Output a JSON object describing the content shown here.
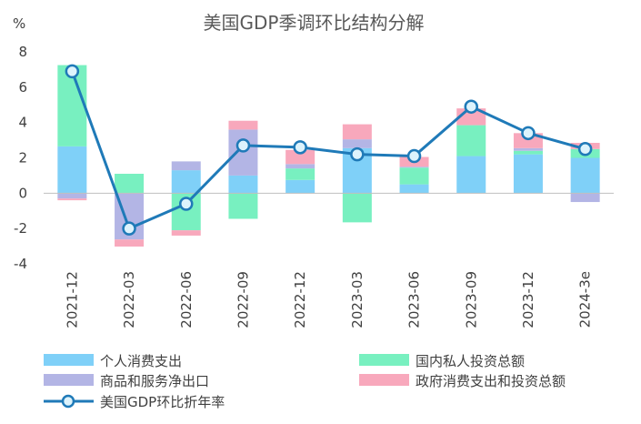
{
  "chart_data": {
    "type": "bar",
    "stacked": true,
    "title": "美国GDP季调环比结构分解",
    "ylabel": "%",
    "xlabel": "",
    "ylim": [
      -4,
      8
    ],
    "yticks": [
      -4,
      -2,
      0,
      2,
      4,
      6,
      8
    ],
    "categories": [
      "2021-12",
      "2022-03",
      "2022-06",
      "2022-09",
      "2022-12",
      "2023-03",
      "2023-06",
      "2023-09",
      "2023-12",
      "2024-3e"
    ],
    "series": [
      {
        "name": "个人消费支出",
        "kind": "bar",
        "color": "#7FD0F8",
        "values": [
          2.65,
          -0.02,
          1.3,
          1.0,
          0.75,
          2.55,
          0.5,
          2.1,
          2.2,
          2.0
        ]
      },
      {
        "name": "国内私人投资总额",
        "kind": "bar",
        "color": "#78F0C0",
        "values": [
          4.6,
          1.1,
          -2.1,
          -1.45,
          0.65,
          -1.65,
          0.95,
          1.75,
          0.2,
          0.5
        ]
      },
      {
        "name": "商品和服务净出口",
        "kind": "bar",
        "color": "#B3B5E5",
        "values": [
          -0.3,
          -2.6,
          0.5,
          2.6,
          0.25,
          0.5,
          0.05,
          0.0,
          0.15,
          -0.5
        ]
      },
      {
        "name": "政府消费支出和投资总额",
        "kind": "bar",
        "color": "#F8A8BC",
        "values": [
          -0.1,
          -0.4,
          -0.3,
          0.5,
          0.8,
          0.85,
          0.55,
          0.95,
          0.85,
          0.35
        ]
      },
      {
        "name": "美国GDP环比折年率",
        "kind": "line",
        "color": "#1F7AB8",
        "values": [
          6.9,
          -2.0,
          -0.6,
          2.7,
          2.6,
          2.2,
          2.1,
          4.9,
          3.4,
          2.5
        ]
      }
    ],
    "legend_position": "bottom",
    "grid": false
  }
}
